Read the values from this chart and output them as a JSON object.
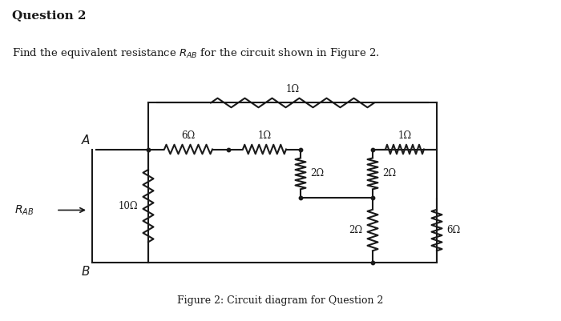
{
  "title": "Question 2",
  "subtitle": "Find the equivalent resistance $R_{AB}$ for the circuit shown in Figure 2.",
  "caption": "Figure 2: Circuit diagram for Question 2",
  "background_color": "#ffffff",
  "text_color": "#1a1a1a",
  "line_color": "#1a1a1a",
  "node_A_label": "$A$",
  "node_B_label": "$B$",
  "RAB_label": "$R_{AB}$",
  "res_top": "1Ω",
  "res_6": "6Ω",
  "res_mid1": "1Ω",
  "res_mid2": "1Ω",
  "res_2a": "2Ω",
  "res_2b": "2Ω",
  "res_10": "10Ω",
  "res_2c": "2Ω",
  "res_6b": "6Ω"
}
